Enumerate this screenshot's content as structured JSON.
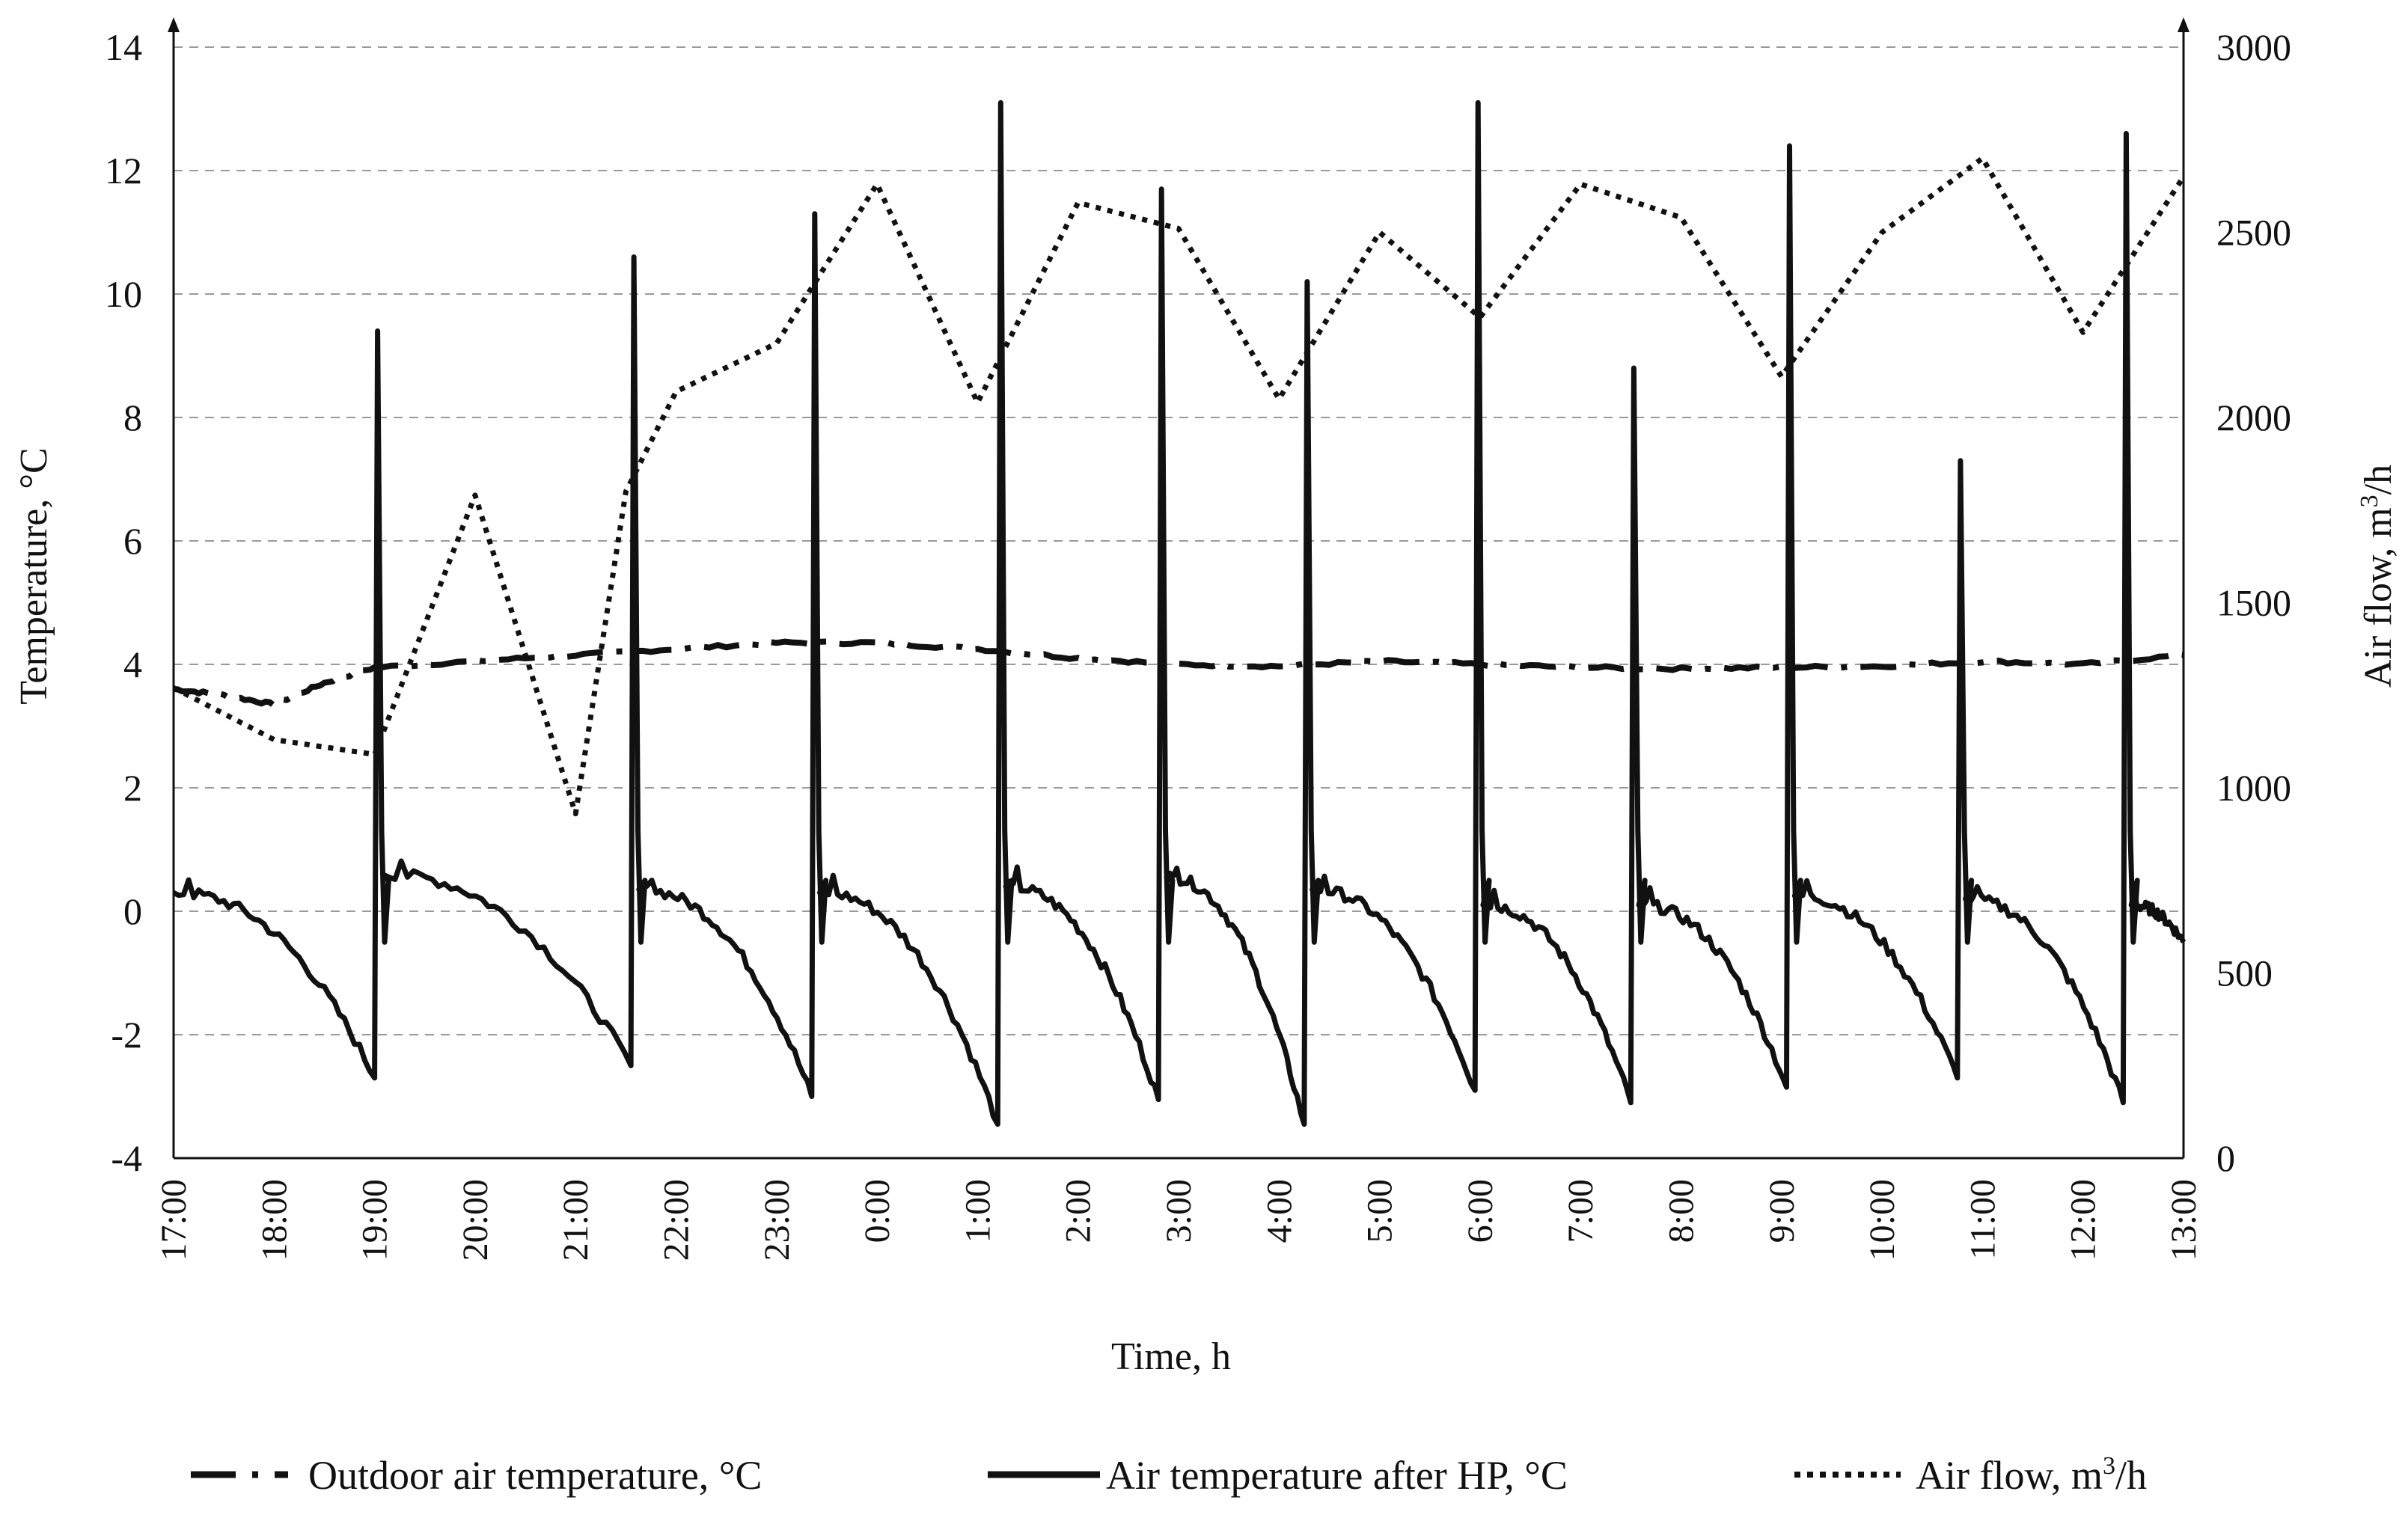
{
  "chart_data": {
    "type": "line",
    "title": "",
    "xlabel": "Time, h",
    "ylabel_left": "Temperature, °C",
    "ylabel_right": {
      "base": "Air flow, m",
      "sup": "3",
      "tail": "/h"
    },
    "y_left_range": [
      -4,
      14
    ],
    "y_left_ticks": [
      "14",
      "12",
      "10",
      "8",
      "6",
      "4",
      "2",
      "0",
      "-2",
      "-4"
    ],
    "y_left_tick_values": [
      14,
      12,
      10,
      8,
      6,
      4,
      2,
      0,
      -2,
      -4
    ],
    "y_right_range": [
      0,
      3000
    ],
    "y_right_ticks": [
      "3000",
      "2500",
      "2000",
      "1500",
      "1000",
      "500",
      "0"
    ],
    "y_right_tick_values": [
      3000,
      2500,
      2000,
      1500,
      1000,
      500,
      0
    ],
    "x_range": [
      0,
      20
    ],
    "x_ticks": [
      "17:00",
      "18:00",
      "19:00",
      "20:00",
      "21:00",
      "22:00",
      "23:00",
      "0:00",
      "1:00",
      "2:00",
      "3:00",
      "4:00",
      "5:00",
      "6:00",
      "7:00",
      "8:00",
      "9:00",
      "10:00",
      "11:00",
      "12:00",
      "13:00"
    ],
    "x_units": "hours after 17:00",
    "grid": "horizontal dashed",
    "legend": {
      "placement": "bottom",
      "items": [
        {
          "label": "Outdoor air temperature, °C",
          "style": "dash-dot"
        },
        {
          "label": "Air temperature after HP, °C",
          "style": "solid"
        },
        {
          "label": "Air flow, m",
          "sup": "3",
          "tail": "/h",
          "style": "dotted"
        }
      ]
    },
    "series": [
      {
        "name": "Outdoor air temperature, °C",
        "axis": "left",
        "style": "dash-dot",
        "x": [
          0,
          0.5,
          1,
          1.5,
          2,
          3,
          4,
          5,
          6,
          7,
          8,
          9,
          10,
          11,
          12,
          13,
          14,
          15,
          16,
          17,
          18,
          19,
          20
        ],
        "y": [
          3.6,
          3.5,
          3.35,
          3.7,
          3.95,
          4.05,
          4.15,
          4.25,
          4.35,
          4.35,
          4.25,
          4.1,
          4.0,
          3.97,
          4.05,
          4.0,
          3.95,
          3.93,
          3.95,
          3.97,
          4.05,
          4.0,
          4.15
        ]
      },
      {
        "name": "Air temperature after HP, °C",
        "axis": "left",
        "style": "solid",
        "cycles": [
          {
            "start": 0.0,
            "end": 2.0,
            "start_temp": 0.3,
            "min": -2.7,
            "peak": 9.4
          },
          {
            "start": 2.08,
            "end": 4.55,
            "start_temp": 0.6,
            "min": -2.5,
            "peak": 10.6
          },
          {
            "start": 4.63,
            "end": 6.35,
            "start_temp": 0.35,
            "min": -3.0,
            "peak": 11.3
          },
          {
            "start": 6.43,
            "end": 8.2,
            "start_temp": 0.3,
            "min": -3.45,
            "peak": 13.1
          },
          {
            "start": 8.28,
            "end": 9.8,
            "start_temp": 0.4,
            "min": -3.05,
            "peak": 11.7
          },
          {
            "start": 9.88,
            "end": 11.25,
            "start_temp": 0.55,
            "min": -3.45,
            "peak": 10.2
          },
          {
            "start": 11.33,
            "end": 12.95,
            "start_temp": 0.35,
            "min": -2.9,
            "peak": 13.1
          },
          {
            "start": 13.03,
            "end": 14.5,
            "start_temp": 0.1,
            "min": -3.1,
            "peak": 8.8
          },
          {
            "start": 14.58,
            "end": 16.05,
            "start_temp": 0.1,
            "min": -2.85,
            "peak": 12.4
          },
          {
            "start": 16.13,
            "end": 17.75,
            "start_temp": 0.25,
            "min": -2.7,
            "peak": 7.3
          },
          {
            "start": 17.83,
            "end": 19.4,
            "start_temp": 0.2,
            "min": -3.1,
            "peak": 12.6
          },
          {
            "start": 19.48,
            "end": 20.0,
            "start_temp": 0.1,
            "min": -0.5,
            "peak": null
          }
        ]
      },
      {
        "name": "Air flow, m³/h",
        "axis": "right",
        "style": "dotted",
        "x": [
          0,
          1,
          2,
          3,
          4,
          4.5,
          5,
          6,
          7,
          8,
          9,
          10,
          11,
          12,
          13,
          14,
          15,
          16,
          17,
          18,
          19,
          20
        ],
        "y": [
          1270,
          1130,
          1090,
          1790,
          930,
          1800,
          2070,
          2200,
          2630,
          2040,
          2580,
          2510,
          2050,
          2500,
          2270,
          2630,
          2540,
          2110,
          2500,
          2700,
          2230,
          2650
        ]
      }
    ]
  }
}
